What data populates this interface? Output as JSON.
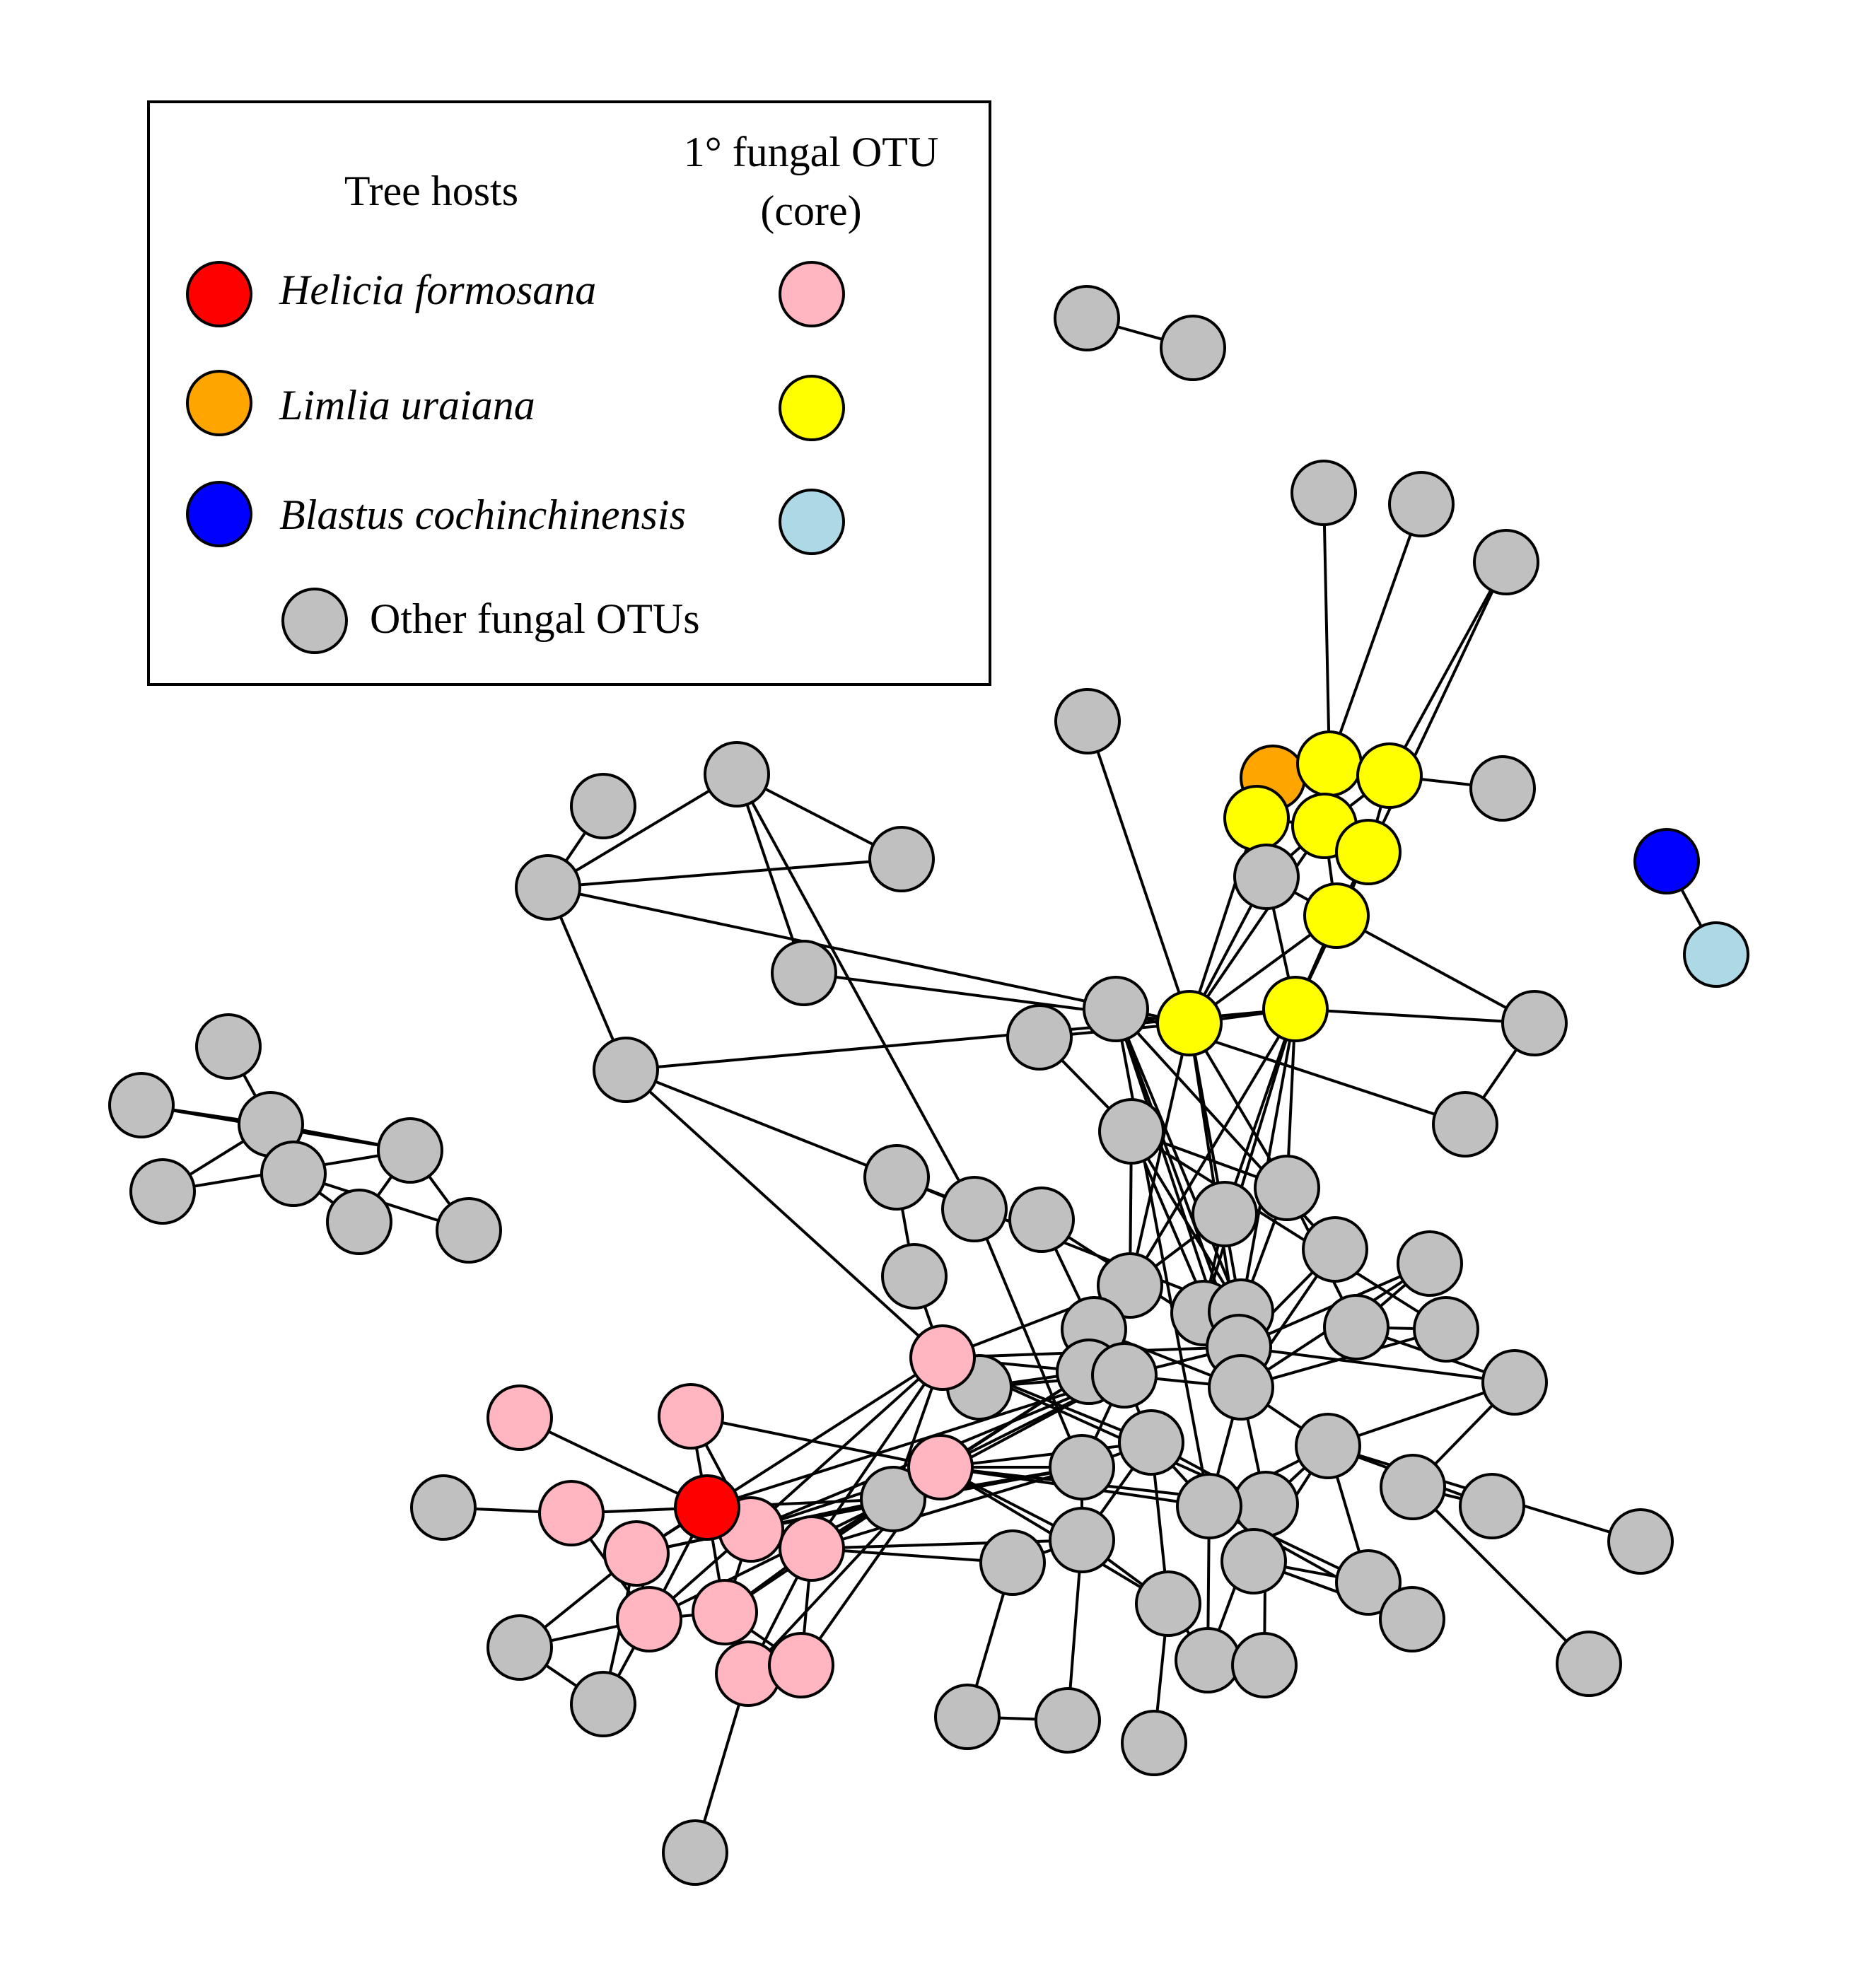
{
  "legend": {
    "tree_hosts_heading": "Tree hosts",
    "core_heading_line1": "1° fungal OTU",
    "core_heading_line2": "(core)",
    "hosts": [
      {
        "name": "Helicia formosana",
        "host_color": "#ff0000",
        "core_color": "#ffb6c1"
      },
      {
        "name": "Limlia uraiana",
        "host_color": "#ffa500",
        "core_color": "#ffff00"
      },
      {
        "name": "Blastus cochinchinensis",
        "host_color": "#0000ff",
        "core_color": "#add8e6"
      }
    ],
    "other_label": "Other fungal OTUs",
    "other_color": "#c0c0c0"
  },
  "network": {
    "node_groups": {
      "helicia_host": "#ff0000",
      "helicia_core": "#ffb6c1",
      "limlia_host": "#ffa500",
      "limlia_core": "#ffff00",
      "blastus_host": "#0000ff",
      "blastus_core": "#add8e6",
      "other": "#c0c0c0"
    }
  }
}
